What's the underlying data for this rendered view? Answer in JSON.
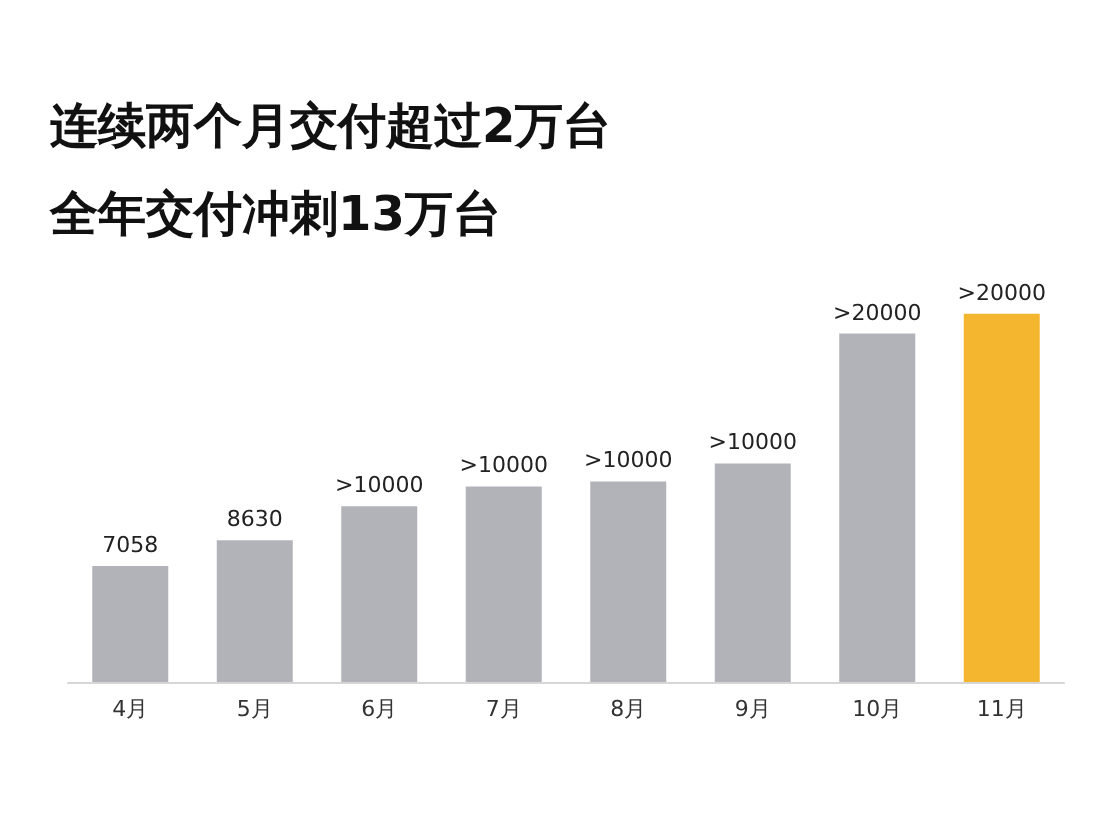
{
  "chart_data": {
    "type": "bar",
    "title": "连续两个月交付超过2万台",
    "subtitle": "全年交付冲刺13万台",
    "categories": [
      "4月",
      "5月",
      "6月",
      "7月",
      "8月",
      "9月",
      "10月",
      "11月"
    ],
    "values": [
      7058,
      8630,
      10700,
      11900,
      12200,
      13300,
      21200,
      22400
    ],
    "value_labels": [
      "7058",
      "8630",
      ">10000",
      ">10000",
      ">10000",
      ">10000",
      ">20000",
      ">20000"
    ],
    "colors": [
      "#b1b3b8",
      "#b1b3b8",
      "#b1b3b8",
      "#b1b3b8",
      "#b1b3b8",
      "#b1b3b8",
      "#b1b3b8",
      "#f5b62f"
    ]
  }
}
